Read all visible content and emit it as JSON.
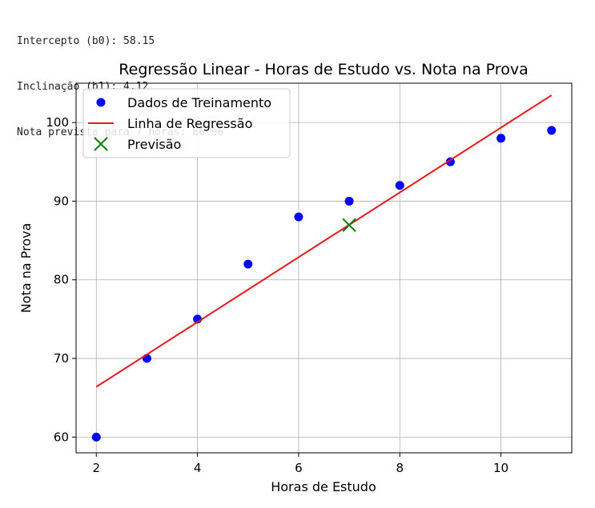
{
  "console": {
    "lines": [
      "Intercepto (b0): 58.15",
      "Inclinação (b1): 4.12",
      "Nota prevista para 7 horas: 86.96"
    ]
  },
  "chart_data": {
    "type": "scatter",
    "title": "Regressão Linear - Horas de Estudo vs. Nota na Prova",
    "xlabel": "Horas de Estudo",
    "ylabel": "Nota na Prova",
    "xlim": [
      1.6,
      11.4
    ],
    "ylim": [
      58,
      105
    ],
    "xticks": [
      2,
      4,
      6,
      8,
      10
    ],
    "yticks": [
      60,
      70,
      80,
      90,
      100
    ],
    "grid": true,
    "legend_position": "upper left",
    "series": [
      {
        "name": "Dados de Treinamento",
        "kind": "scatter",
        "color": "#0000ff",
        "x": [
          2,
          3,
          4,
          5,
          6,
          7,
          8,
          9,
          10,
          11
        ],
        "y": [
          60,
          70,
          75,
          82,
          88,
          90,
          92,
          95,
          98,
          99
        ]
      },
      {
        "name": "Linha de Regressão",
        "kind": "line",
        "color": "#e41a1c",
        "x": [
          2,
          11
        ],
        "y": [
          66.39,
          103.47
        ]
      },
      {
        "name": "Previsão",
        "kind": "marker-x",
        "color": "#008000",
        "x": [
          7
        ],
        "y": [
          86.96
        ]
      }
    ]
  }
}
